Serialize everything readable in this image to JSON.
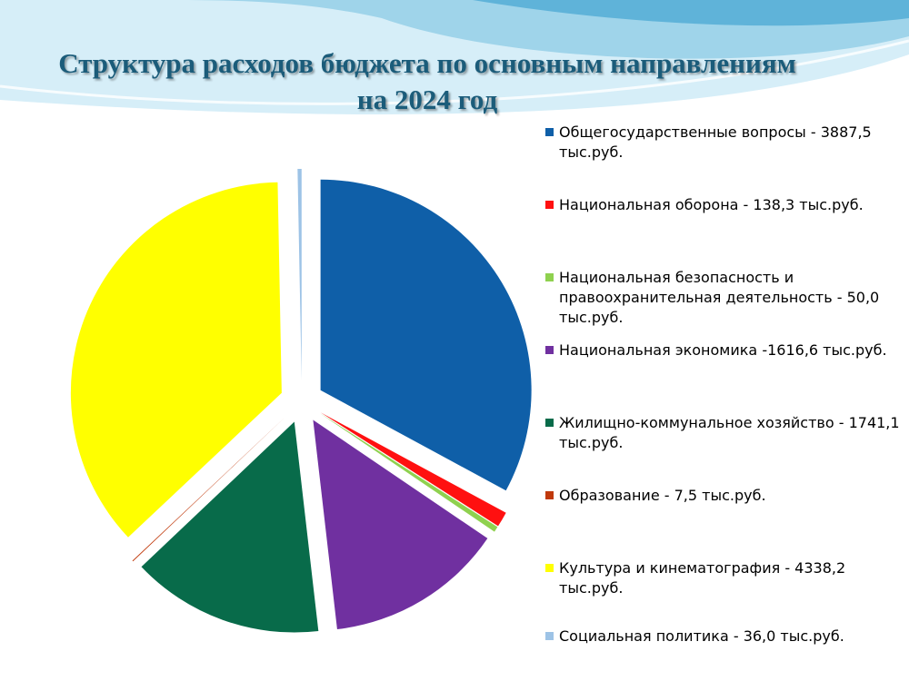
{
  "colors": {
    "background": "#ffffff",
    "title": "#1b5c7a",
    "wave_light": "#d6eef8",
    "wave_mid": "#9fd4ea",
    "wave_dark": "#5fb3d9"
  },
  "chart_data": {
    "type": "pie",
    "title": "Структура расходов бюджета по основным направлениям на 2024 год",
    "unit": "тыс.руб.",
    "legend_position": "right",
    "exploded": true,
    "slices": [
      {
        "label": "Общегосударственные вопросы - 3887,5 тыс.руб.",
        "value": 3887.5,
        "color": "#0f5fa8"
      },
      {
        "label": "Национальная оборона - 138,3 тыс.руб.",
        "value": 138.3,
        "color": "#ff1010"
      },
      {
        "label": "Национальная безопасность и правоохранительная деятельность - 50,0 тыс.руб.",
        "value": 50.0,
        "color": "#8fd14f"
      },
      {
        "label": "Национальная экономика -1616,6 тыс.руб.",
        "value": 1616.6,
        "color": "#7030a0"
      },
      {
        "label": "Жилищно-коммунальное хозяйство - 1741,1 тыс.руб.",
        "value": 1741.1,
        "color": "#086b4a"
      },
      {
        "label": "Образование - 7,5 тыс.руб.",
        "value": 7.5,
        "color": "#c0390b"
      },
      {
        "label": "Культура и кинематография - 4338,2 тыс.руб.",
        "value": 4338.2,
        "color": "#ffff00"
      },
      {
        "label": "Социальная политика - 36,0 тыс.руб.",
        "value": 36.0,
        "color": "#9dc3e6"
      }
    ]
  }
}
